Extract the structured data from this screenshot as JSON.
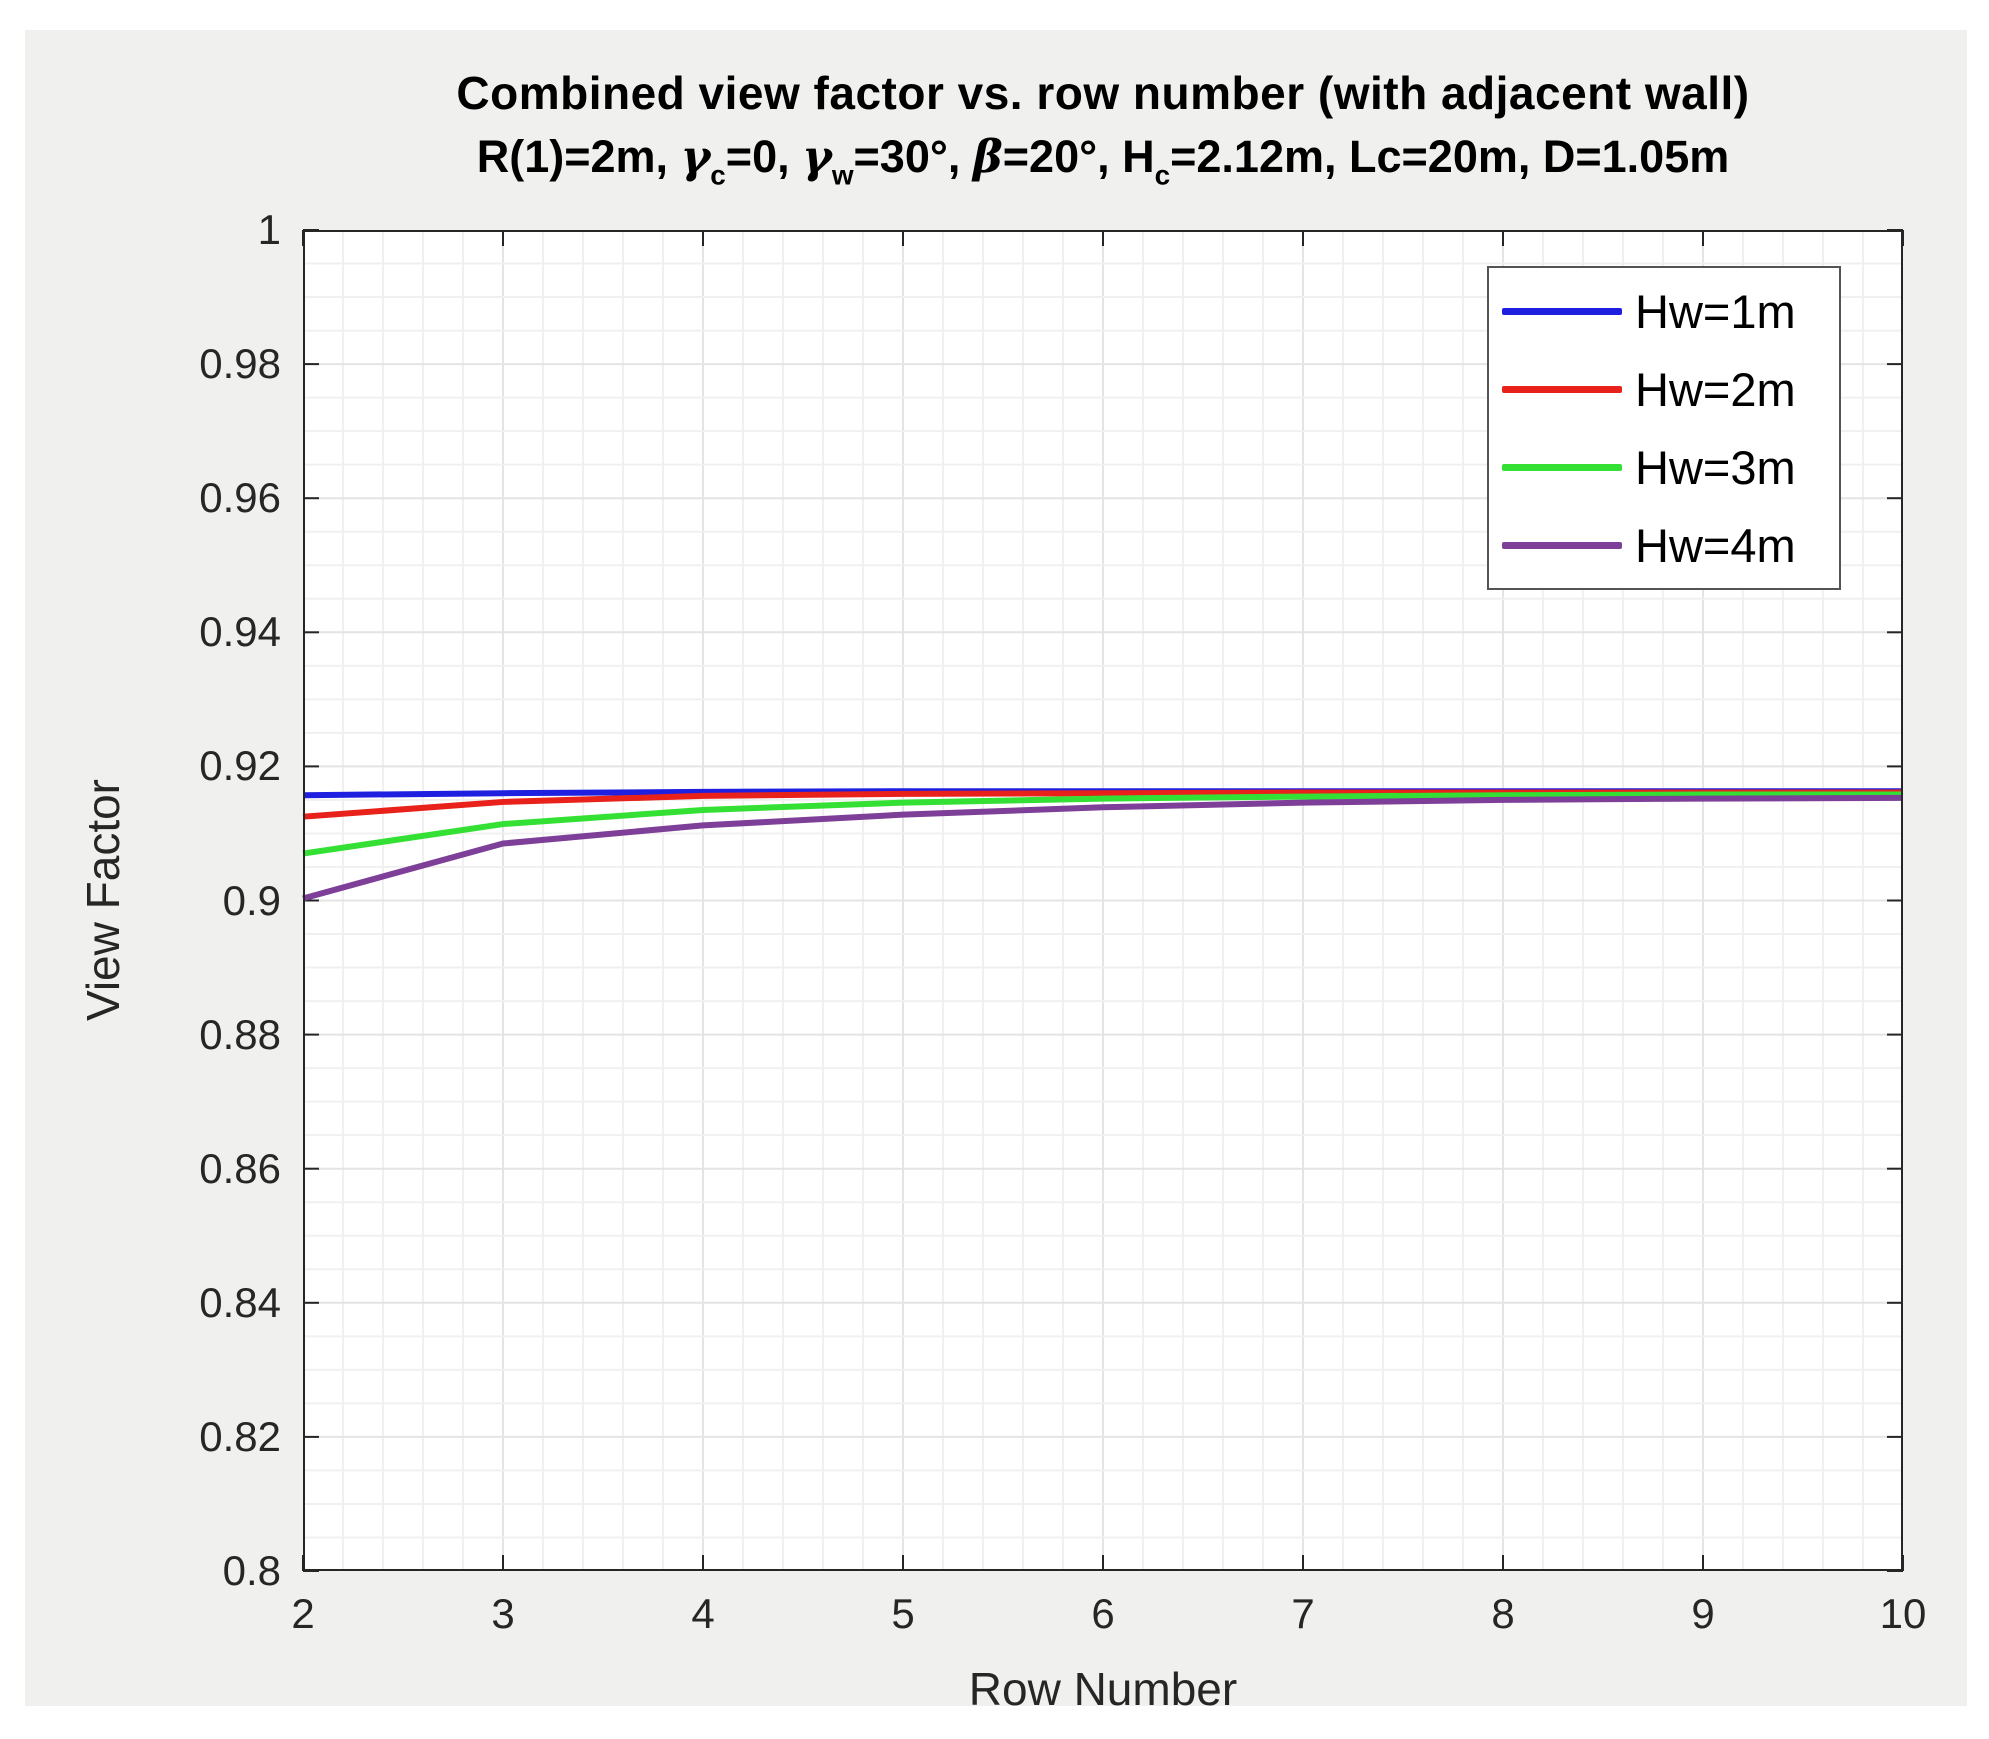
{
  "chart_data": {
    "type": "line",
    "title": "Combined view factor vs. row number (with adjacent wall)",
    "subtitle": "R(1)=2m, γc=0, γw=30°, β=20°, Hc=2.12m, Lc=20m, D=1.05m",
    "subtitle_segments": [
      {
        "t": "R(1)=2m, "
      },
      {
        "t": "γ",
        "i": true
      },
      {
        "t": "c",
        "sub": true
      },
      {
        "t": "=0, "
      },
      {
        "t": "γ",
        "i": true
      },
      {
        "t": "w",
        "sub": true
      },
      {
        "t": "=30°, "
      },
      {
        "t": "β",
        "i": true
      },
      {
        "t": "=20°, H"
      },
      {
        "t": "c",
        "sub": true
      },
      {
        "t": "=2.12m, Lc=20m, D=1.05m"
      }
    ],
    "xlabel": "Row Number",
    "ylabel": "View Factor",
    "xlim": [
      2,
      10
    ],
    "ylim": [
      0.8,
      1.0
    ],
    "x": [
      2,
      3,
      4,
      5,
      6,
      7,
      8,
      9,
      10
    ],
    "xtick_labels": [
      "2",
      "3",
      "4",
      "5",
      "6",
      "7",
      "8",
      "9",
      "10"
    ],
    "ytick_values": [
      0.8,
      0.82,
      0.84,
      0.86,
      0.88,
      0.9,
      0.92,
      0.94,
      0.96,
      0.98,
      1
    ],
    "ytick_labels": [
      "0.8",
      "0.82",
      "0.84",
      "0.86",
      "0.88",
      "0.9",
      "0.92",
      "0.94",
      "0.96",
      "0.98",
      "1"
    ],
    "grid": "on with minor grid",
    "legend_position": "top-right inside axes",
    "series": [
      {
        "name": "Hw=1m",
        "color": "#1f1fe0",
        "values": [
          0.9157,
          0.916,
          0.9162,
          0.9163,
          0.9163,
          0.9163,
          0.9163,
          0.9163,
          0.9163
        ]
      },
      {
        "name": "Hw=2m",
        "color": "#e8221a",
        "values": [
          0.9125,
          0.9147,
          0.9156,
          0.9159,
          0.916,
          0.9161,
          0.9161,
          0.9161,
          0.9161
        ]
      },
      {
        "name": "Hw=3m",
        "color": "#33e033",
        "values": [
          0.907,
          0.9114,
          0.9135,
          0.9146,
          0.9152,
          0.9155,
          0.9157,
          0.9158,
          0.9158
        ]
      },
      {
        "name": "Hw=4m",
        "color": "#7e3f98",
        "values": [
          0.9003,
          0.9085,
          0.9112,
          0.9128,
          0.9139,
          0.9146,
          0.915,
          0.9152,
          0.9153
        ]
      }
    ],
    "style": {
      "figure_bg": "#f0f0ee",
      "plot_bg": "#ffffff",
      "axis_color": "#262626",
      "major_grid_color": "#e4e4e4",
      "minor_grid_color": "#f0f0f0",
      "x_minor_step": 0.2,
      "y_minor_step": 0.005
    }
  }
}
